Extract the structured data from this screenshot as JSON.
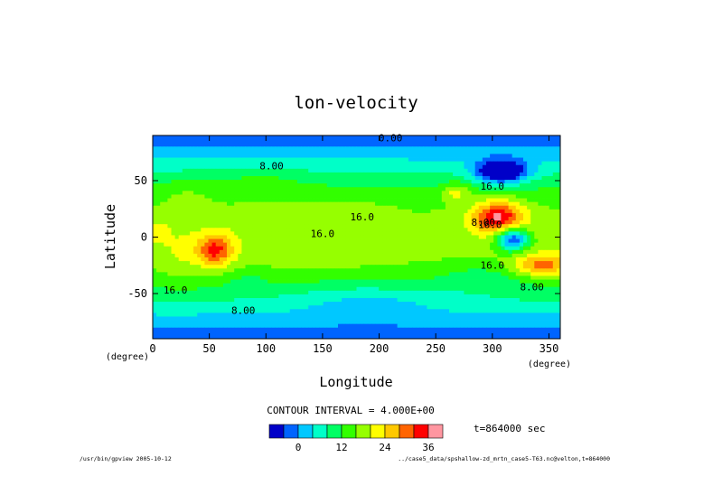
{
  "chart_data": {
    "type": "heatmap",
    "title": "lon-velocity",
    "xlabel": "Longitude",
    "ylabel": "Latitude",
    "x_units": "(degree)",
    "y_units": "(degree)",
    "xlim": [
      0,
      360
    ],
    "ylim": [
      -90,
      90
    ],
    "x_ticks": [
      0,
      50,
      100,
      150,
      200,
      250,
      300,
      350
    ],
    "y_ticks": [
      -50,
      0,
      50
    ],
    "contour_interval_label": "CONTOUR INTERVAL = 4.000E+00",
    "time_label": "t=864000 sec",
    "contour_labels": [
      "0.00",
      "8.00",
      "16.0",
      "16.0",
      "8.00",
      "16.0",
      "8.00",
      "16.0",
      "16.0",
      "16.0",
      "8.00"
    ],
    "colorbar": {
      "levels": [
        -8,
        -4,
        0,
        4,
        8,
        12,
        16,
        20,
        24,
        28,
        32,
        36,
        40
      ],
      "tick_labels": [
        "0",
        "12",
        "24",
        "36"
      ],
      "tick_values": [
        0,
        12,
        24,
        36
      ],
      "colors": [
        "#0000c8",
        "#0064ff",
        "#00c8ff",
        "#00ffc8",
        "#00ff64",
        "#32ff00",
        "#96ff00",
        "#ffff00",
        "#ffc800",
        "#ff6400",
        "#ff0000",
        "#ff96a0"
      ]
    },
    "features": [
      {
        "kind": "high",
        "lon": 305,
        "lat": 18,
        "value": 38
      },
      {
        "kind": "high",
        "lon": 55,
        "lat": -12,
        "value": 34
      },
      {
        "kind": "high",
        "lon": 345,
        "lat": -25,
        "value": 32
      },
      {
        "kind": "high",
        "lon": 268,
        "lat": 40,
        "value": 28
      },
      {
        "kind": "low",
        "lon": 308,
        "lat": 58,
        "value": -6
      },
      {
        "kind": "low",
        "lon": 318,
        "lat": -2,
        "value": -6
      },
      {
        "kind": "low",
        "lon": 190,
        "lat": 90,
        "value": -2
      },
      {
        "kind": "low",
        "lon": 180,
        "lat": -88,
        "value": 0
      }
    ]
  },
  "footer": {
    "left": "/usr/bin/gpview  2005-10-12",
    "right": "../case5_data/spshallow-zd_mrtn_case5-T63.nc@velton,t=864000"
  }
}
